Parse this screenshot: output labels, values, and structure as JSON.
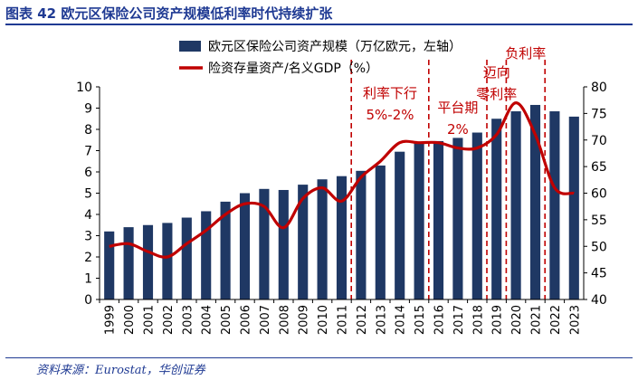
{
  "header": {
    "title": "图表 42  欧元区保险公司资产规模低利率时代持续扩张"
  },
  "footer": {
    "source": "资料来源：Eurostat，华创证券"
  },
  "colors": {
    "bar": "#1f3864",
    "line": "#c00000",
    "annotation": "#c00000",
    "title": "#1f3a93"
  },
  "chart_data": {
    "type": "bar+line",
    "categories": [
      "1999",
      "2000",
      "2001",
      "2002",
      "2003",
      "2004",
      "2005",
      "2006",
      "2007",
      "2008",
      "2009",
      "2010",
      "2011",
      "2012",
      "2013",
      "2014",
      "2015",
      "2016",
      "2017",
      "2018",
      "2019",
      "2020",
      "2021",
      "2022",
      "2023"
    ],
    "series": [
      {
        "name": "欧元区保险公司资产规模（万亿欧元，左轴）",
        "type": "bar",
        "axis": "left",
        "values": [
          3.2,
          3.4,
          3.5,
          3.6,
          3.85,
          4.15,
          4.6,
          5.0,
          5.2,
          5.15,
          5.4,
          5.65,
          5.8,
          6.05,
          6.3,
          6.95,
          7.35,
          7.45,
          7.6,
          7.85,
          8.5,
          8.85,
          9.15,
          8.85,
          8.6
        ]
      },
      {
        "name": "险资存量资产/名义GDP（%）",
        "type": "line",
        "axis": "right",
        "values": [
          50.0,
          50.5,
          49.0,
          48.0,
          50.5,
          53.0,
          56.0,
          58.0,
          57.5,
          53.5,
          59.0,
          61.0,
          58.5,
          63.0,
          66.0,
          69.5,
          69.5,
          69.5,
          68.5,
          68.5,
          71.0,
          77.0,
          71.0,
          61.0,
          60.0
        ]
      }
    ],
    "y_left": {
      "min": 0,
      "max": 10,
      "ticks": [
        0,
        1,
        2,
        3,
        4,
        5,
        6,
        7,
        8,
        9,
        10
      ]
    },
    "y_right": {
      "min": 40,
      "max": 80,
      "ticks": [
        40,
        45,
        50,
        55,
        60,
        65,
        70,
        75,
        80
      ]
    },
    "legend_position": "top",
    "annotations": [
      {
        "lines": [
          "利率下行",
          "5%-2%"
        ],
        "period_start": "2011",
        "period_end": "2015"
      },
      {
        "lines": [
          "平台期",
          "2%"
        ],
        "period_start": "2015",
        "period_end": "2018"
      },
      {
        "lines": [
          "迈向",
          "零利率"
        ],
        "period_start": "2018",
        "period_end": "2019"
      },
      {
        "lines": [
          "负利率"
        ],
        "period_start": "2019",
        "period_end": "2021"
      }
    ],
    "dashed_dividers_after": [
      "2011",
      "2015",
      "2018",
      "2019",
      "2021"
    ]
  }
}
